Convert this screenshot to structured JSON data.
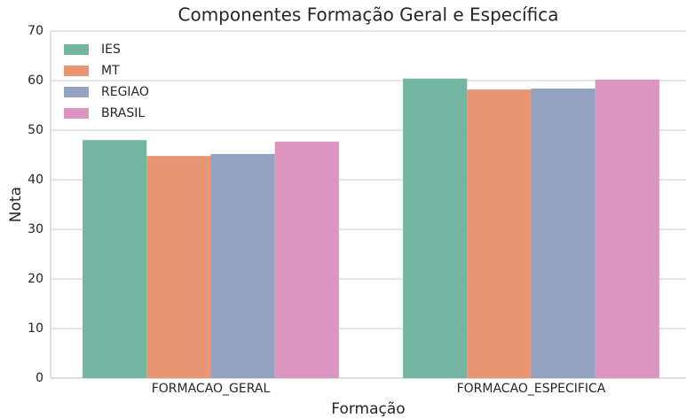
{
  "chart_data": {
    "type": "bar",
    "title": "Componentes Formação Geral e Específica",
    "x_label": "Formação",
    "y_label": "Nota",
    "categories": [
      "FORMACAO_GERAL",
      "FORMACAO_ESPECIFICA"
    ],
    "series": [
      {
        "name": "IES",
        "color": "#72b6a1",
        "values": [
          48.0,
          60.4
        ]
      },
      {
        "name": "MT",
        "color": "#e99675",
        "values": [
          44.8,
          58.2
        ]
      },
      {
        "name": "REGIAO",
        "color": "#95a3c3",
        "values": [
          45.2,
          58.4
        ]
      },
      {
        "name": "BRASIL",
        "color": "#db96c0",
        "values": [
          47.7,
          60.2
        ]
      }
    ],
    "ylim": [
      0,
      70
    ],
    "yticks": [
      0,
      10,
      20,
      30,
      40,
      50,
      60,
      70
    ],
    "grid": true,
    "legend": "upper left"
  }
}
